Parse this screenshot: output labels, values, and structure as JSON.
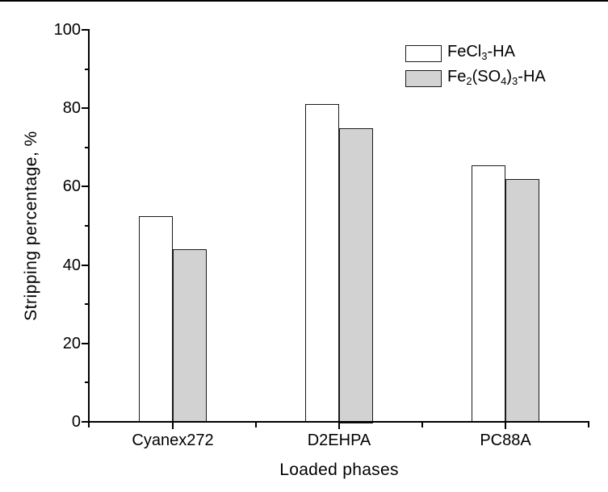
{
  "chart_data": {
    "type": "bar",
    "title": "",
    "xlabel": "Loaded phases",
    "ylabel": "Stripping percentage, %",
    "categories": [
      "Cyanex272",
      "D2EHPA",
      "PC88A"
    ],
    "series": [
      {
        "name": "FeCl3-HA",
        "label_parts": [
          {
            "t": "FeCl"
          },
          {
            "t": "3",
            "sub": true
          },
          {
            "t": "-HA"
          }
        ],
        "fill": "#ffffff",
        "values": [
          52.5,
          81,
          65.5
        ]
      },
      {
        "name": "Fe2(SO4)3-HA",
        "label_parts": [
          {
            "t": "Fe"
          },
          {
            "t": "2",
            "sub": true
          },
          {
            "t": "(SO"
          },
          {
            "t": "4",
            "sub": true
          },
          {
            "t": ")"
          },
          {
            "t": "3",
            "sub": true
          },
          {
            "t": "-HA"
          }
        ],
        "fill": "#d2d2d2",
        "values": [
          44,
          75,
          62
        ]
      }
    ],
    "ylim": [
      0,
      100
    ],
    "y_major_ticks": [
      0,
      20,
      40,
      60,
      80,
      100
    ],
    "y_minor_step": 10,
    "grid": false,
    "legend_position": "top-right",
    "axis_color": "#000000",
    "bar_border_color": "#1a1a1a"
  }
}
